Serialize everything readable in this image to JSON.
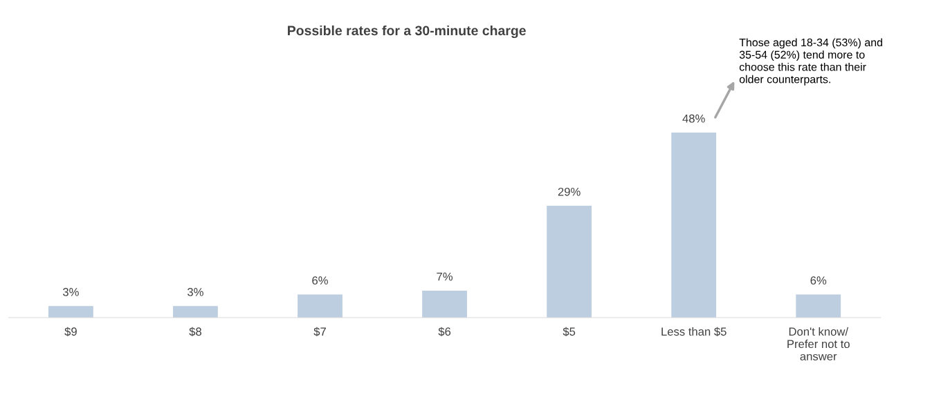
{
  "chart_data": {
    "type": "bar",
    "title": "Possible rates for a 30-minute charge",
    "categories": [
      "$9",
      "$8",
      "$7",
      "$6",
      "$5",
      "Less than $5",
      "Don't know/ Prefer not to answer"
    ],
    "values": [
      3,
      3,
      6,
      7,
      29,
      48,
      6
    ],
    "color": "#bccee0",
    "value_labels": [
      "3%",
      "3%",
      "6%",
      "7%",
      "29%",
      "48%",
      "6%"
    ],
    "annotations": [
      "Those aged 18-34 (53%) and 35-54 (52%) tend more to choose this rate than their older counterparts."
    ],
    "grid": false,
    "legend": false
  }
}
